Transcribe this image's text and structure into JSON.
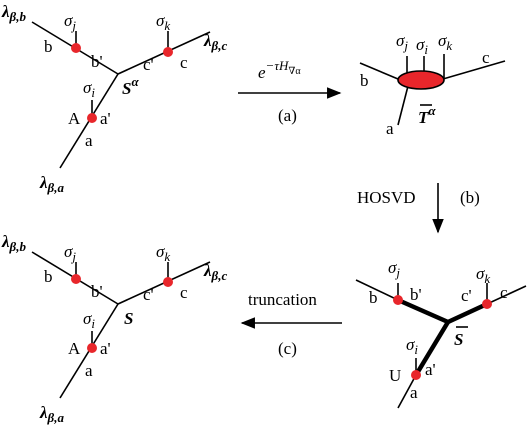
{
  "colors": {
    "node": "#e8262b",
    "line": "#000000"
  },
  "d1": {
    "lam_b_main": "λ",
    "lam_b_sub": "β,b",
    "lam_c_main": "λ",
    "lam_c_sub": "β,c",
    "lam_a_main": "λ",
    "lam_a_sub": "β,a",
    "b": "b",
    "bp": "b'",
    "c": "c",
    "cp": "c'",
    "a": "a",
    "ap": "a'",
    "A": "A",
    "sj_main": "σ",
    "sj_sub": "j",
    "sk_main": "σ",
    "sk_sub": "k",
    "si_main": "σ",
    "si_sub": "i",
    "S_main": "S",
    "S_sup": "α"
  },
  "d2": {
    "b": "b",
    "c": "c",
    "a": "a",
    "sj_main": "σ",
    "sj_sub": "j",
    "si_main": "σ",
    "si_sub": "i",
    "sk_main": "σ",
    "sk_sub": "k",
    "T_main": "T",
    "T_sup": "α"
  },
  "d3": {
    "b": "b",
    "bp": "b'",
    "c": "c",
    "cp": "c'",
    "a": "a",
    "ap": "a'",
    "U": "U",
    "sj_main": "σ",
    "sj_sub": "j",
    "sk_main": "σ",
    "sk_sub": "k",
    "si_main": "σ",
    "si_sub": "i",
    "S_main": "S"
  },
  "d4": {
    "lam_b_main": "λ",
    "lam_b_sub": "β,b",
    "lam_c_main": "λ",
    "lam_c_sub": "β,c",
    "lam_a_main": "λ",
    "lam_a_sub": "β,a",
    "b": "b",
    "bp": "b'",
    "c": "c",
    "cp": "c'",
    "a": "a",
    "ap": "a'",
    "A": "A",
    "sj_main": "σ",
    "sj_sub": "j",
    "sk_main": "σ",
    "sk_sub": "k",
    "si_main": "σ",
    "si_sub": "i",
    "S_main": "S"
  },
  "arrows": {
    "a_exp_e": "e",
    "a_exp_mid": "−τH",
    "a_exp_sub": "∇α",
    "a_tag": "(a)",
    "b_label": "HOSVD",
    "b_tag": "(b)",
    "c_label": "truncation",
    "c_tag": "(c)"
  }
}
